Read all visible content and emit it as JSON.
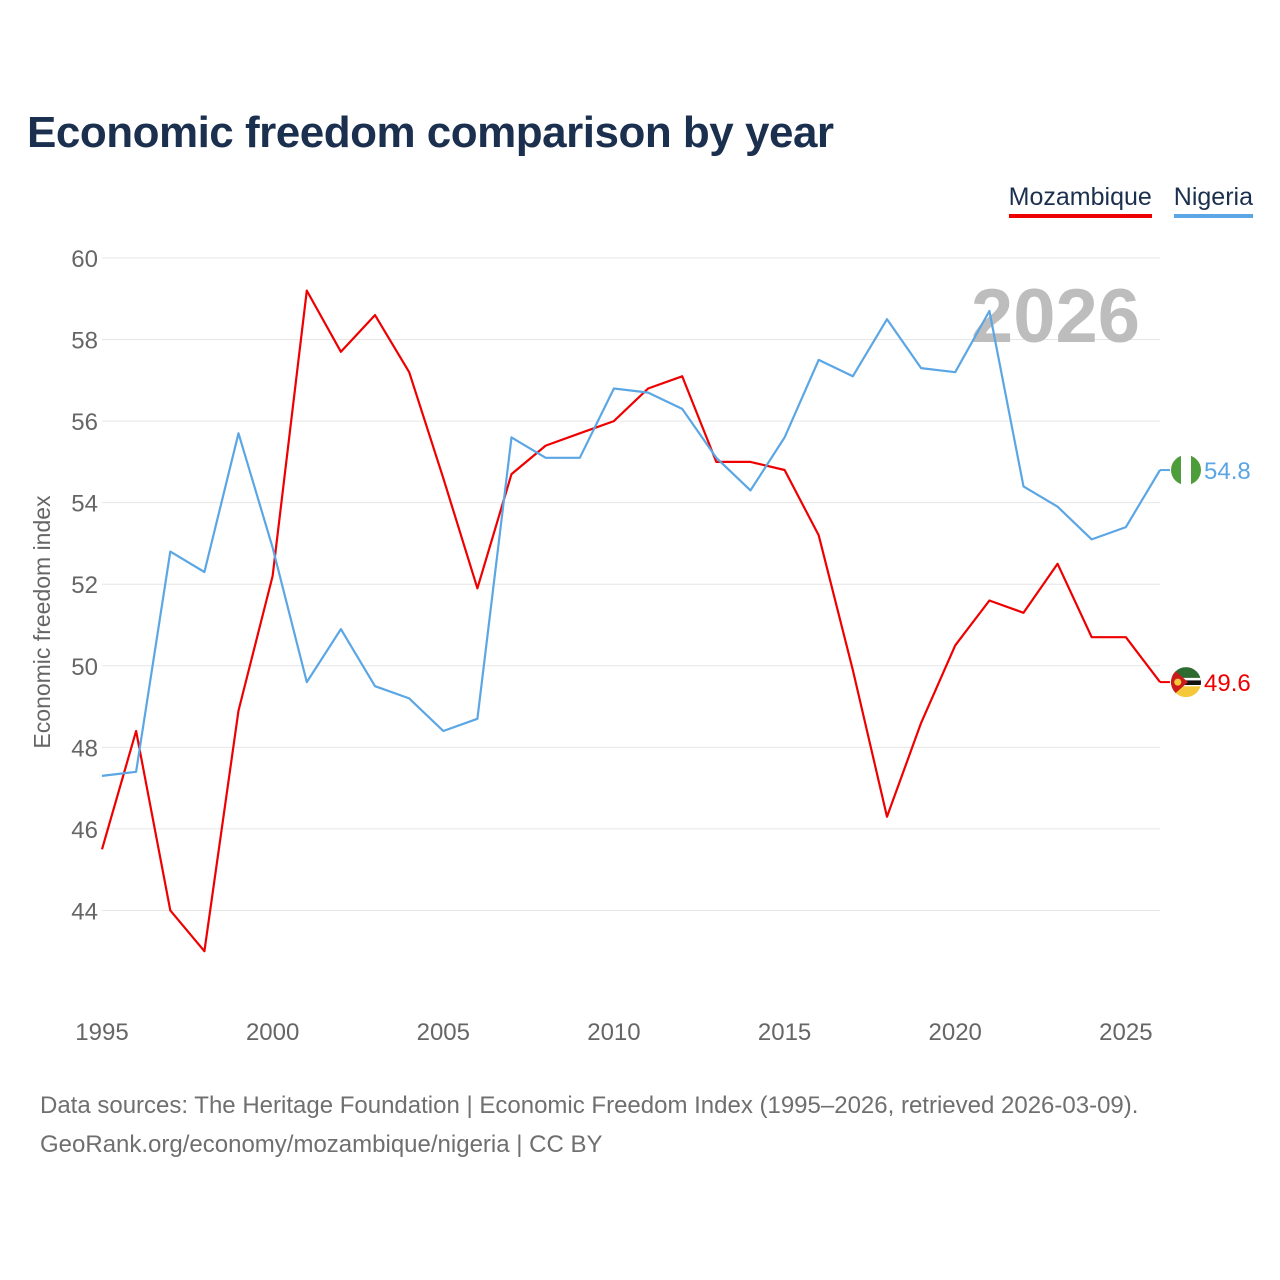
{
  "title": "Economic freedom comparison by year",
  "footer": {
    "line1": "Data sources: The Heritage Foundation | Economic Freedom Index (1995–2026, retrieved 2026-03-09).",
    "line2": "GeoRank.org/economy/mozambique/nigeria | CC BY"
  },
  "chart_data": {
    "type": "line",
    "title": "Economic freedom comparison by year",
    "xlabel": "",
    "ylabel": "Economic freedom index",
    "xlim": [
      1995,
      2026
    ],
    "ylim": [
      42,
      60
    ],
    "yticks": [
      44,
      46,
      48,
      50,
      52,
      54,
      56,
      58,
      60
    ],
    "xticks": [
      1995,
      2000,
      2005,
      2010,
      2015,
      2020,
      2025
    ],
    "watermark_year": "2026",
    "legend_position": "top-right",
    "x": [
      1995,
      1996,
      1997,
      1998,
      1999,
      2000,
      2001,
      2002,
      2003,
      2004,
      2005,
      2006,
      2007,
      2008,
      2009,
      2010,
      2011,
      2012,
      2013,
      2014,
      2015,
      2016,
      2017,
      2018,
      2019,
      2020,
      2021,
      2022,
      2023,
      2024,
      2025,
      2026
    ],
    "series": [
      {
        "name": "Mozambique",
        "color": "#ee0000",
        "flag_icon": "mozambique-flag-icon",
        "end_label": "49.6",
        "values": [
          45.5,
          48.4,
          44.0,
          43.0,
          48.9,
          52.2,
          59.2,
          57.7,
          58.6,
          57.2,
          54.6,
          51.9,
          54.7,
          55.4,
          55.7,
          56.0,
          56.8,
          57.1,
          55.0,
          55.0,
          54.8,
          53.2,
          49.9,
          46.3,
          48.6,
          50.5,
          51.6,
          51.3,
          52.5,
          50.7,
          50.7,
          49.6
        ]
      },
      {
        "name": "Nigeria",
        "color": "#5ba6e4",
        "flag_icon": "nigeria-flag-icon",
        "end_label": "54.8",
        "values": [
          47.3,
          47.4,
          52.8,
          52.3,
          55.7,
          52.9,
          49.6,
          50.9,
          49.5,
          49.2,
          48.4,
          48.7,
          55.6,
          55.1,
          55.1,
          56.8,
          56.7,
          56.3,
          55.1,
          54.3,
          55.6,
          57.5,
          57.1,
          58.5,
          57.3,
          57.2,
          58.7,
          54.4,
          53.9,
          53.1,
          53.4,
          54.8
        ]
      }
    ]
  }
}
